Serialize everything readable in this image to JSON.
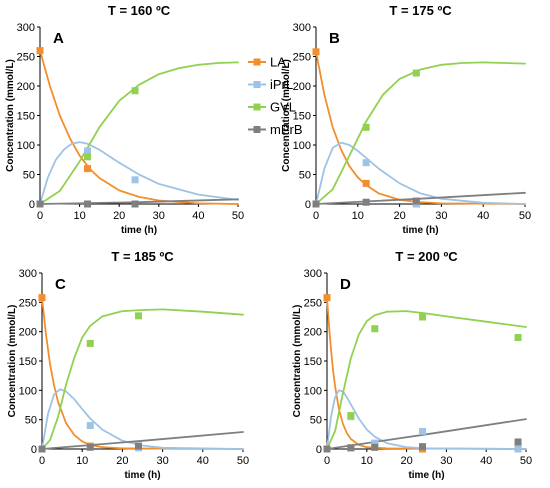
{
  "chart_data": [
    {
      "type": "line",
      "title": "T = 160 ºC",
      "panel": "A",
      "xlabel": "time (h)",
      "ylabel": "Concentration (mmol/L)",
      "xlim": [
        0,
        50
      ],
      "ylim": [
        0,
        300
      ],
      "xticks": [
        0,
        10,
        20,
        30,
        40,
        50
      ],
      "yticks": [
        0,
        50,
        100,
        150,
        200,
        250,
        300
      ],
      "show_legend": true,
      "series": [
        {
          "name": "LA",
          "color": "#f28e2b",
          "points": [
            [
              0,
              260
            ],
            [
              12,
              60
            ],
            [
              24,
              0
            ]
          ],
          "curve": [
            [
              0,
              260
            ],
            [
              2.5,
              200
            ],
            [
              5,
              150
            ],
            [
              7.5,
              112
            ],
            [
              10,
              82
            ],
            [
              12.5,
              60
            ],
            [
              15,
              44
            ],
            [
              20,
              23
            ],
            [
              25,
              12
            ],
            [
              30,
              6
            ],
            [
              40,
              1
            ],
            [
              50,
              0
            ]
          ]
        },
        {
          "name": "iPrL",
          "color": "#9dc3e6",
          "points": [
            [
              12,
              90
            ],
            [
              24,
              41
            ]
          ],
          "curve": [
            [
              0,
              0
            ],
            [
              2,
              45
            ],
            [
              4,
              75
            ],
            [
              6,
              92
            ],
            [
              8,
              102
            ],
            [
              10,
              105
            ],
            [
              12,
              102
            ],
            [
              15,
              92
            ],
            [
              20,
              70
            ],
            [
              25,
              50
            ],
            [
              30,
              34
            ],
            [
              40,
              16
            ],
            [
              50,
              7
            ]
          ]
        },
        {
          "name": "GVL",
          "color": "#92d050",
          "points": [
            [
              0,
              0
            ],
            [
              12,
              80
            ],
            [
              24,
              192
            ]
          ],
          "curve": [
            [
              0,
              0
            ],
            [
              5,
              22
            ],
            [
              10,
              72
            ],
            [
              15,
              130
            ],
            [
              20,
              175
            ],
            [
              25,
              202
            ],
            [
              30,
              220
            ],
            [
              35,
              230
            ],
            [
              40,
              236
            ],
            [
              45,
              239
            ],
            [
              50,
              240
            ]
          ]
        },
        {
          "name": "mPrB",
          "color": "#7f7f7f",
          "points": [
            [
              0,
              0
            ],
            [
              12,
              0
            ],
            [
              24,
              0
            ]
          ],
          "curve": [
            [
              0,
              0
            ],
            [
              25,
              3
            ],
            [
              50,
              8
            ]
          ]
        }
      ]
    },
    {
      "type": "line",
      "title": "T = 175 ºC",
      "panel": "B",
      "xlabel": "time (h)",
      "ylabel": "Concentration (mmol/L)",
      "xlim": [
        0,
        50
      ],
      "ylim": [
        0,
        300
      ],
      "xticks": [
        0,
        10,
        20,
        30,
        40,
        50
      ],
      "yticks": [
        0,
        50,
        100,
        150,
        200,
        250,
        300
      ],
      "show_legend": false,
      "series": [
        {
          "name": "LA",
          "color": "#f28e2b",
          "points": [
            [
              0,
              258
            ],
            [
              12,
              35
            ],
            [
              24,
              0
            ]
          ],
          "curve": [
            [
              0,
              258
            ],
            [
              2,
              185
            ],
            [
              4,
              130
            ],
            [
              6,
              92
            ],
            [
              8,
              64
            ],
            [
              10,
              45
            ],
            [
              12,
              32
            ],
            [
              15,
              18
            ],
            [
              20,
              7
            ],
            [
              25,
              3
            ],
            [
              30,
              1
            ],
            [
              50,
              0
            ]
          ]
        },
        {
          "name": "iPrL",
          "color": "#9dc3e6",
          "points": [
            [
              12,
              70
            ],
            [
              24,
              0
            ]
          ],
          "curve": [
            [
              0,
              0
            ],
            [
              2,
              60
            ],
            [
              4,
              95
            ],
            [
              6,
              104
            ],
            [
              8,
              100
            ],
            [
              10,
              90
            ],
            [
              12,
              78
            ],
            [
              15,
              60
            ],
            [
              20,
              35
            ],
            [
              25,
              18
            ],
            [
              30,
              9
            ],
            [
              40,
              2
            ],
            [
              50,
              0
            ]
          ]
        },
        {
          "name": "GVL",
          "color": "#92d050",
          "points": [
            [
              0,
              0
            ],
            [
              12,
              130
            ],
            [
              24,
              222
            ]
          ],
          "curve": [
            [
              0,
              0
            ],
            [
              4,
              25
            ],
            [
              8,
              82
            ],
            [
              12,
              140
            ],
            [
              16,
              185
            ],
            [
              20,
              212
            ],
            [
              25,
              228
            ],
            [
              30,
              236
            ],
            [
              35,
              239
            ],
            [
              40,
              240
            ],
            [
              50,
              238
            ]
          ]
        },
        {
          "name": "mPrB",
          "color": "#7f7f7f",
          "points": [
            [
              0,
              0
            ],
            [
              12,
              3
            ],
            [
              24,
              5
            ]
          ],
          "curve": [
            [
              0,
              0
            ],
            [
              25,
              9
            ],
            [
              50,
              19
            ]
          ]
        }
      ]
    },
    {
      "type": "line",
      "title": "T = 185 ºC",
      "panel": "C",
      "xlabel": "time (h)",
      "ylabel": "Concentration (mmol/L)",
      "xlim": [
        0,
        50
      ],
      "ylim": [
        0,
        300
      ],
      "xticks": [
        0,
        10,
        20,
        30,
        40,
        50
      ],
      "yticks": [
        0,
        50,
        100,
        150,
        200,
        250,
        300
      ],
      "show_legend": false,
      "series": [
        {
          "name": "LA",
          "color": "#f28e2b",
          "points": [
            [
              0,
              258
            ],
            [
              12,
              5
            ],
            [
              24,
              3
            ]
          ],
          "curve": [
            [
              0,
              258
            ],
            [
              1,
              195
            ],
            [
              2,
              145
            ],
            [
              3,
              108
            ],
            [
              4,
              80
            ],
            [
              6,
              44
            ],
            [
              8,
              24
            ],
            [
              10,
              13
            ],
            [
              12,
              7
            ],
            [
              15,
              3
            ],
            [
              20,
              1
            ],
            [
              50,
              0
            ]
          ]
        },
        {
          "name": "iPrL",
          "color": "#9dc3e6",
          "points": [
            [
              12,
              40
            ],
            [
              24,
              2
            ]
          ],
          "curve": [
            [
              0,
              0
            ],
            [
              1.5,
              60
            ],
            [
              3,
              93
            ],
            [
              4.5,
              102
            ],
            [
              6,
              98
            ],
            [
              8,
              85
            ],
            [
              10,
              68
            ],
            [
              12,
              52
            ],
            [
              15,
              33
            ],
            [
              20,
              14
            ],
            [
              25,
              6
            ],
            [
              30,
              2
            ],
            [
              50,
              0
            ]
          ]
        },
        {
          "name": "GVL",
          "color": "#92d050",
          "points": [
            [
              0,
              0
            ],
            [
              12,
              180
            ],
            [
              24,
              227
            ]
          ],
          "curve": [
            [
              0,
              0
            ],
            [
              2,
              15
            ],
            [
              4,
              55
            ],
            [
              6,
              110
            ],
            [
              8,
              155
            ],
            [
              10,
              190
            ],
            [
              12,
              210
            ],
            [
              15,
              226
            ],
            [
              20,
              235
            ],
            [
              25,
              237
            ],
            [
              30,
              238
            ],
            [
              40,
              234
            ],
            [
              50,
              229
            ]
          ]
        },
        {
          "name": "mPrB",
          "color": "#7f7f7f",
          "points": [
            [
              0,
              0
            ],
            [
              12,
              3
            ],
            [
              24,
              5
            ]
          ],
          "curve": [
            [
              0,
              0
            ],
            [
              25,
              14
            ],
            [
              50,
              29
            ]
          ]
        }
      ]
    },
    {
      "type": "line",
      "title": "T = 200 ºC",
      "panel": "D",
      "xlabel": "time (h)",
      "ylabel": "Concentration (mmol/L)",
      "xlim": [
        0,
        50
      ],
      "ylim": [
        0,
        300
      ],
      "xticks": [
        0,
        10,
        20,
        30,
        40,
        50
      ],
      "yticks": [
        0,
        50,
        100,
        150,
        200,
        250,
        300
      ],
      "show_legend": false,
      "series": [
        {
          "name": "LA",
          "color": "#f28e2b",
          "points": [
            [
              0,
              258
            ],
            [
              6,
              2
            ],
            [
              12,
              3
            ],
            [
              24,
              0
            ],
            [
              48,
              0
            ]
          ],
          "curve": [
            [
              0,
              258
            ],
            [
              0.5,
              210
            ],
            [
              1,
              170
            ],
            [
              1.5,
              135
            ],
            [
              2,
              108
            ],
            [
              3,
              68
            ],
            [
              4,
              43
            ],
            [
              5,
              27
            ],
            [
              6,
              17
            ],
            [
              8,
              7
            ],
            [
              10,
              3
            ],
            [
              15,
              1
            ],
            [
              50,
              0
            ]
          ]
        },
        {
          "name": "iPrL",
          "color": "#9dc3e6",
          "points": [
            [
              6,
              55
            ],
            [
              12,
              10
            ],
            [
              24,
              30
            ],
            [
              48,
              0
            ]
          ],
          "curve": [
            [
              0,
              0
            ],
            [
              1,
              55
            ],
            [
              2,
              88
            ],
            [
              3,
              100
            ],
            [
              4,
              98
            ],
            [
              5,
              88
            ],
            [
              6,
              76
            ],
            [
              8,
              52
            ],
            [
              10,
              33
            ],
            [
              12,
              21
            ],
            [
              15,
              10
            ],
            [
              20,
              3
            ],
            [
              25,
              1
            ],
            [
              50,
              0
            ]
          ]
        },
        {
          "name": "GVL",
          "color": "#92d050",
          "points": [
            [
              0,
              0
            ],
            [
              6,
              57
            ],
            [
              12,
              205
            ],
            [
              24,
              225
            ],
            [
              48,
              190
            ]
          ],
          "curve": [
            [
              0,
              0
            ],
            [
              2,
              30
            ],
            [
              4,
              95
            ],
            [
              6,
              155
            ],
            [
              8,
              195
            ],
            [
              10,
              218
            ],
            [
              12,
              228
            ],
            [
              15,
              234
            ],
            [
              20,
              235
            ],
            [
              25,
              231
            ],
            [
              30,
              226
            ],
            [
              40,
              217
            ],
            [
              50,
              208
            ]
          ]
        },
        {
          "name": "mPrB",
          "color": "#7f7f7f",
          "points": [
            [
              0,
              0
            ],
            [
              6,
              2
            ],
            [
              12,
              3
            ],
            [
              24,
              4
            ],
            [
              48,
              12
            ]
          ],
          "curve": [
            [
              0,
              0
            ],
            [
              25,
              25
            ],
            [
              50,
              51
            ]
          ]
        }
      ]
    }
  ]
}
